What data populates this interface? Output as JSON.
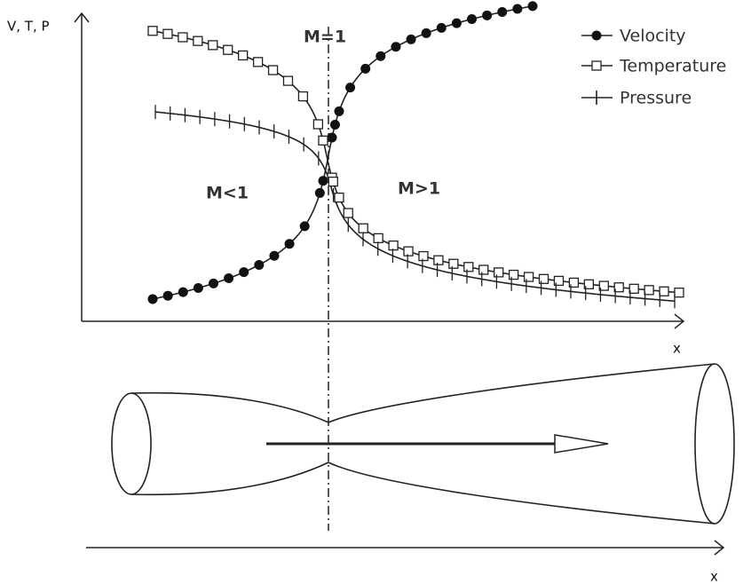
{
  "plot": {
    "y_axis_label": "V, T, P",
    "x_axis_label": "x",
    "sonic_label": "M=1",
    "subsonic_label": "M<1",
    "supersonic_label": "M>1",
    "legend": [
      "Velocity",
      "Temperature",
      "Pressure"
    ]
  },
  "nozzle": {
    "x_axis_label": "x"
  }
}
